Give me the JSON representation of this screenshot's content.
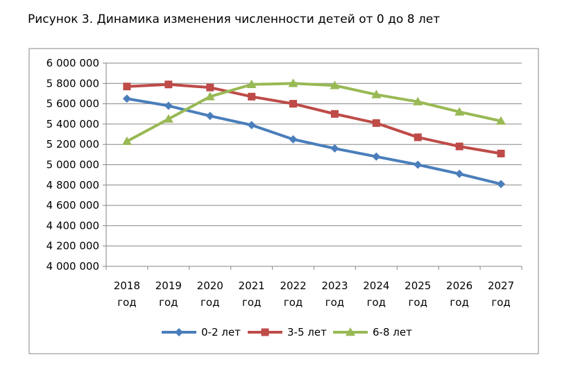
{
  "chart_data": {
    "type": "line",
    "title": "Рисунок 3. Динамика изменения численности детей от 0 до 8 лет",
    "categories": [
      [
        "2018",
        "год"
      ],
      [
        "2019",
        "год"
      ],
      [
        "2020",
        "год"
      ],
      [
        "2021",
        "год"
      ],
      [
        "2022",
        "год"
      ],
      [
        "2023",
        "год"
      ],
      [
        "2024",
        "год"
      ],
      [
        "2025",
        "год"
      ],
      [
        "2026",
        "год"
      ],
      [
        "2027",
        "год"
      ]
    ],
    "ylim": [
      4000000,
      6000000
    ],
    "yticks": [
      4000000,
      4200000,
      4400000,
      4600000,
      4800000,
      5000000,
      5200000,
      5400000,
      5600000,
      5800000,
      6000000
    ],
    "ytick_labels": [
      "4 000 000",
      "4 200 000",
      "4 400 000",
      "4 600 000",
      "4 800 000",
      "5 000 000",
      "5 200 000",
      "5 400 000",
      "5 600 000",
      "5 800 000",
      "6 000 000"
    ],
    "grid": true,
    "legend": "bottom",
    "series": [
      {
        "name": "0-2 лет",
        "color": "#4a7ebb",
        "marker": "diamond",
        "values": [
          5650000,
          5580000,
          5480000,
          5390000,
          5250000,
          5160000,
          5080000,
          5000000,
          4910000,
          4810000
        ]
      },
      {
        "name": "3-5 лет",
        "color": "#be4b48",
        "marker": "square",
        "values": [
          5770000,
          5790000,
          5760000,
          5670000,
          5600000,
          5500000,
          5410000,
          5270000,
          5180000,
          5110000
        ]
      },
      {
        "name": "6-8 лет",
        "color": "#98b954",
        "marker": "triangle",
        "values": [
          5230000,
          5450000,
          5670000,
          5790000,
          5800000,
          5780000,
          5690000,
          5620000,
          5520000,
          5430000
        ]
      }
    ]
  }
}
